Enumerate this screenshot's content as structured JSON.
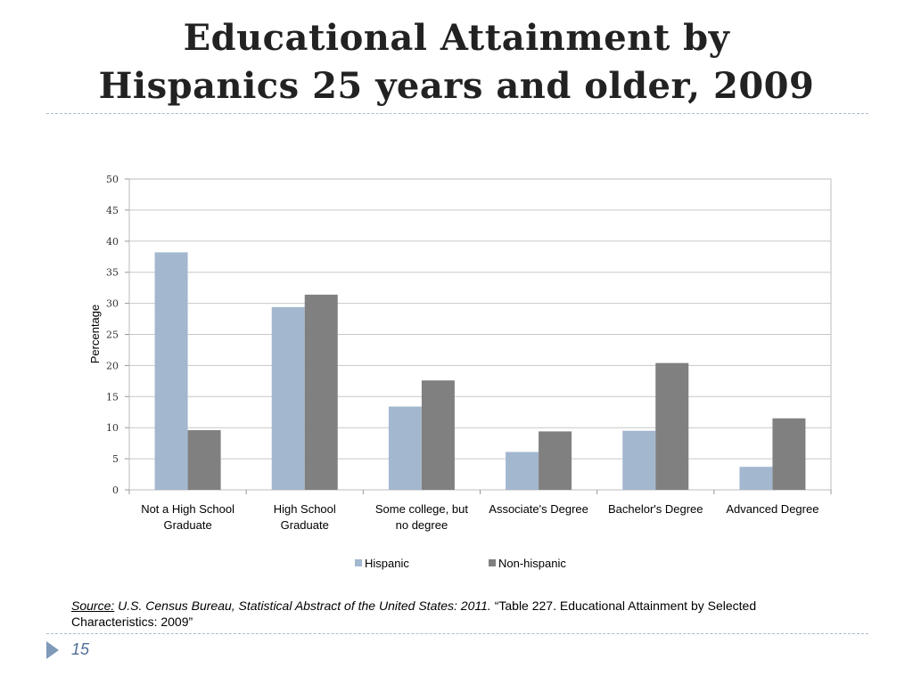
{
  "slide": {
    "title_line1": "Educational Attainment by",
    "title_line2": "Hispanics 25 years and older, 2009",
    "page_number": "15"
  },
  "source": {
    "label": "Source:",
    "publication": "U.S. Census Bureau, Statistical Abstract of the United States: 2011.",
    "table_text": "“Table 227. Educational Attainment by Selected Characteristics: 2009”"
  },
  "chart_data": {
    "type": "bar",
    "ylabel": "Percentage",
    "xlabel": "",
    "ylim": [
      0,
      50
    ],
    "yticks": [
      0,
      5,
      10,
      15,
      20,
      25,
      30,
      35,
      40,
      45,
      50
    ],
    "grid": true,
    "legend_position": "bottom",
    "categories": [
      [
        "Not a High School",
        "Graduate"
      ],
      [
        "High School",
        "Graduate"
      ],
      [
        "Some college, but",
        "no degree"
      ],
      [
        "Associate's Degree"
      ],
      [
        "Bachelor's Degree"
      ],
      [
        "Advanced Degree"
      ]
    ],
    "series": [
      {
        "name": "Hispanic",
        "color": "#a3b7cf",
        "values": [
          38.2,
          29.4,
          13.4,
          6.1,
          9.5,
          3.7
        ]
      },
      {
        "name": "Non-hispanic",
        "color": "#808080",
        "values": [
          9.6,
          31.4,
          17.6,
          9.4,
          20.4,
          11.5
        ]
      }
    ]
  }
}
